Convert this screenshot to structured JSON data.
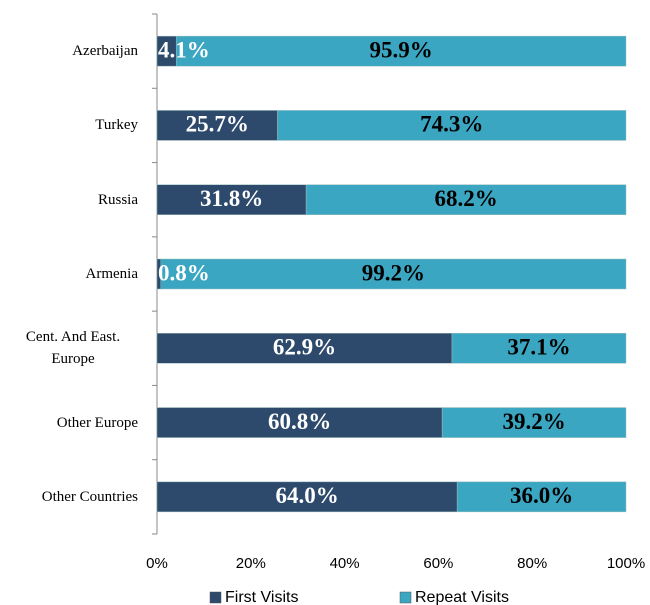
{
  "chart_data": {
    "type": "bar",
    "orientation": "horizontal",
    "stacked": true,
    "categories": [
      "Azerbaijan",
      "Turkey",
      "Russia",
      "Armenia",
      "Cent. And East. Europe",
      "Other Europe",
      "Other Countries"
    ],
    "series": [
      {
        "name": "First Visits",
        "color": "#2d4a6d",
        "label_color": "#ffffff",
        "values": [
          4.1,
          25.7,
          31.8,
          0.8,
          62.9,
          60.8,
          64.0
        ],
        "value_labels": [
          "4.1%",
          "25.7%",
          "31.8%",
          "0.8%",
          "62.9%",
          "60.8%",
          "64.0%"
        ]
      },
      {
        "name": "Repeat Visits",
        "color": "#3ba6c1",
        "label_color": "#000000",
        "values": [
          95.9,
          74.3,
          68.2,
          99.2,
          37.1,
          39.2,
          36.0
        ],
        "value_labels": [
          "95.9%",
          "74.3%",
          "68.2%",
          "99.2%",
          "37.1%",
          "39.2%",
          "36.0%"
        ]
      }
    ],
    "xlim": [
      0,
      100
    ],
    "xticks": [
      {
        "value": 0,
        "label": "0%"
      },
      {
        "value": 20,
        "label": "20%"
      },
      {
        "value": 40,
        "label": "40%"
      },
      {
        "value": 60,
        "label": "60%"
      },
      {
        "value": 80,
        "label": "80%"
      },
      {
        "value": 100,
        "label": "100%"
      }
    ],
    "legend": "bottom"
  }
}
